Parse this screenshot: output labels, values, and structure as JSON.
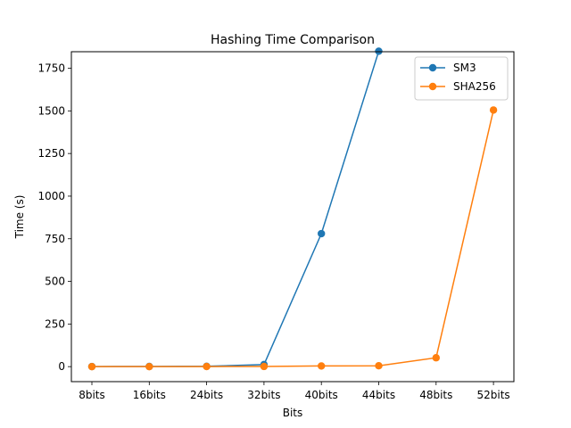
{
  "chart_data": {
    "type": "line",
    "title": "Hashing Time Comparison",
    "xlabel": "Bits",
    "ylabel": "Time (s)",
    "categories": [
      "8bits",
      "16bits",
      "24bits",
      "32bits",
      "40bits",
      "44bits",
      "48bits",
      "52bits"
    ],
    "yticks": [
      0,
      250,
      500,
      750,
      1000,
      1250,
      1500,
      1750
    ],
    "ylim": [
      -88,
      1847
    ],
    "grid": false,
    "legend_position": "upper right",
    "series": [
      {
        "name": "SM3",
        "color": "#1f77b4",
        "marker": "circle",
        "values": [
          0.5,
          1,
          2,
          12,
          780,
          1850,
          null,
          null
        ]
      },
      {
        "name": "SHA256",
        "color": "#ff7f0e",
        "marker": "circle",
        "values": [
          0,
          0,
          0.5,
          1,
          4,
          5,
          52,
          1505
        ]
      }
    ]
  }
}
